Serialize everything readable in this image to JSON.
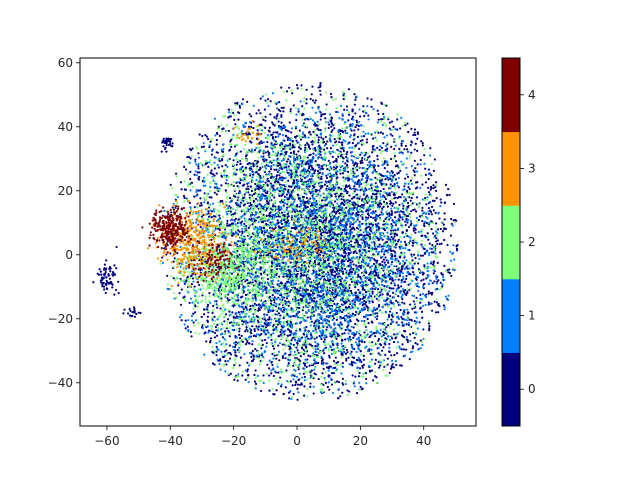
{
  "chart_data": {
    "type": "scatter",
    "title": "",
    "xlabel": "",
    "ylabel": "",
    "xlim": [
      -68.5,
      56.5
    ],
    "ylim": [
      -53.5,
      61.5
    ],
    "x_ticks": [
      -60,
      -40,
      -20,
      0,
      20,
      40
    ],
    "y_ticks": [
      -40,
      -20,
      0,
      20,
      40,
      60
    ],
    "x_tick_labels": [
      "−60",
      "−40",
      "−20",
      "0",
      "20",
      "40"
    ],
    "y_tick_labels": [
      "−40",
      "−20",
      "0",
      "20",
      "40",
      "60"
    ],
    "grid": false,
    "legend": "colorbar-right",
    "colormap": "jet (5 discrete levels)",
    "classes": [
      {
        "value": 0,
        "color": "#00007f"
      },
      {
        "value": 1,
        "color": "#0080ff"
      },
      {
        "value": 2,
        "color": "#7dff7a"
      },
      {
        "value": 3,
        "color": "#ff9400"
      },
      {
        "value": 4,
        "color": "#7f0000"
      }
    ],
    "colorbar": {
      "range": [
        -0.5,
        4.5
      ],
      "ticks": [
        0,
        1,
        2,
        3,
        4
      ],
      "tick_labels": [
        "0",
        "1",
        "2",
        "3",
        "4"
      ]
    },
    "clusters": [
      {
        "label": 0,
        "cx": 5,
        "cy": 2,
        "sx": 20,
        "sy": 22,
        "n": 5200,
        "note": "main cloud, class 0"
      },
      {
        "label": 1,
        "cx": 5,
        "cy": 0,
        "sx": 19,
        "sy": 20,
        "n": 2300,
        "note": "main cloud, class 1"
      },
      {
        "label": 2,
        "cx": 0,
        "cy": 2,
        "sx": 19,
        "sy": 20,
        "n": 2000,
        "note": "main cloud, class 2"
      },
      {
        "label": 2,
        "cx": -22,
        "cy": -5,
        "sx": 7,
        "sy": 6,
        "n": 450,
        "note": "green patch near (-22,-5)"
      },
      {
        "label": 3,
        "cx": -33,
        "cy": 4,
        "sx": 5,
        "sy": 5,
        "n": 380,
        "note": "orange patch near (-33,4)"
      },
      {
        "label": 3,
        "cx": 0,
        "cy": 3,
        "sx": 5,
        "sy": 3,
        "n": 80,
        "note": "small orange spot near (0,3)"
      },
      {
        "label": 3,
        "cx": -15,
        "cy": 38,
        "sx": 2,
        "sy": 2,
        "n": 25,
        "note": "orange spot near (-15,38)"
      },
      {
        "label": 4,
        "cx": -40,
        "cy": 8,
        "sx": 3,
        "sy": 3,
        "n": 300,
        "note": "dark red patch near (-40,8)"
      },
      {
        "label": 4,
        "cx": -27,
        "cy": -3,
        "sx": 3,
        "sy": 3,
        "n": 90,
        "note": "dark red patch near (-27,-3)"
      },
      {
        "label": 0,
        "cx": -60,
        "cy": -7,
        "sx": 1.6,
        "sy": 2.2,
        "n": 70,
        "note": "isolated cluster near (-60,-7)"
      },
      {
        "label": 0,
        "cx": -41,
        "cy": 35,
        "sx": 1.3,
        "sy": 1.0,
        "n": 40,
        "note": "isolated cluster near (-41,35)"
      },
      {
        "label": 0,
        "cx": -52,
        "cy": -18,
        "sx": 1.0,
        "sy": 0.8,
        "n": 20,
        "note": "small cluster near (-52,-18)"
      }
    ]
  }
}
